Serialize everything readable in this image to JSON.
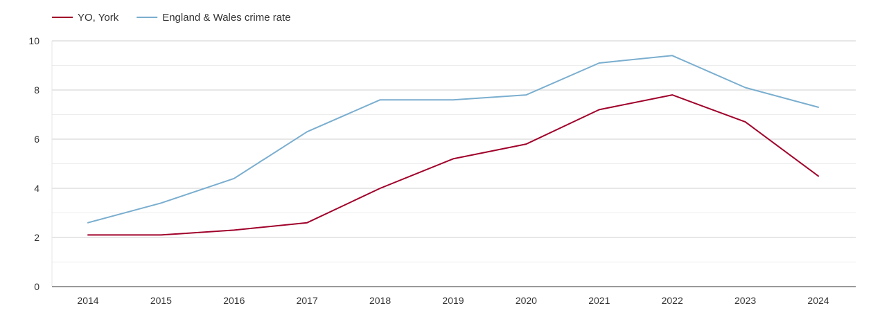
{
  "chart_data": {
    "type": "line",
    "title": "",
    "xlabel": "",
    "ylabel": "",
    "x": [
      "2014",
      "2015",
      "2016",
      "2017",
      "2018",
      "2019",
      "2020",
      "2021",
      "2022",
      "2023",
      "2024"
    ],
    "ylim": [
      0,
      10
    ],
    "yticks": [
      "0",
      "2",
      "4",
      "6",
      "8",
      "10"
    ],
    "grid": true,
    "legend_position": "top-left",
    "series": [
      {
        "name": "YO, York",
        "color": "#a0002a",
        "values": [
          2.1,
          2.1,
          2.3,
          2.6,
          4.0,
          5.2,
          5.8,
          7.2,
          7.8,
          6.7,
          4.5
        ]
      },
      {
        "name": "England & Wales crime rate",
        "color": "#7aaecf",
        "values": [
          2.6,
          3.4,
          4.4,
          6.3,
          7.6,
          7.6,
          7.8,
          9.1,
          9.4,
          8.1,
          7.3
        ]
      }
    ]
  }
}
